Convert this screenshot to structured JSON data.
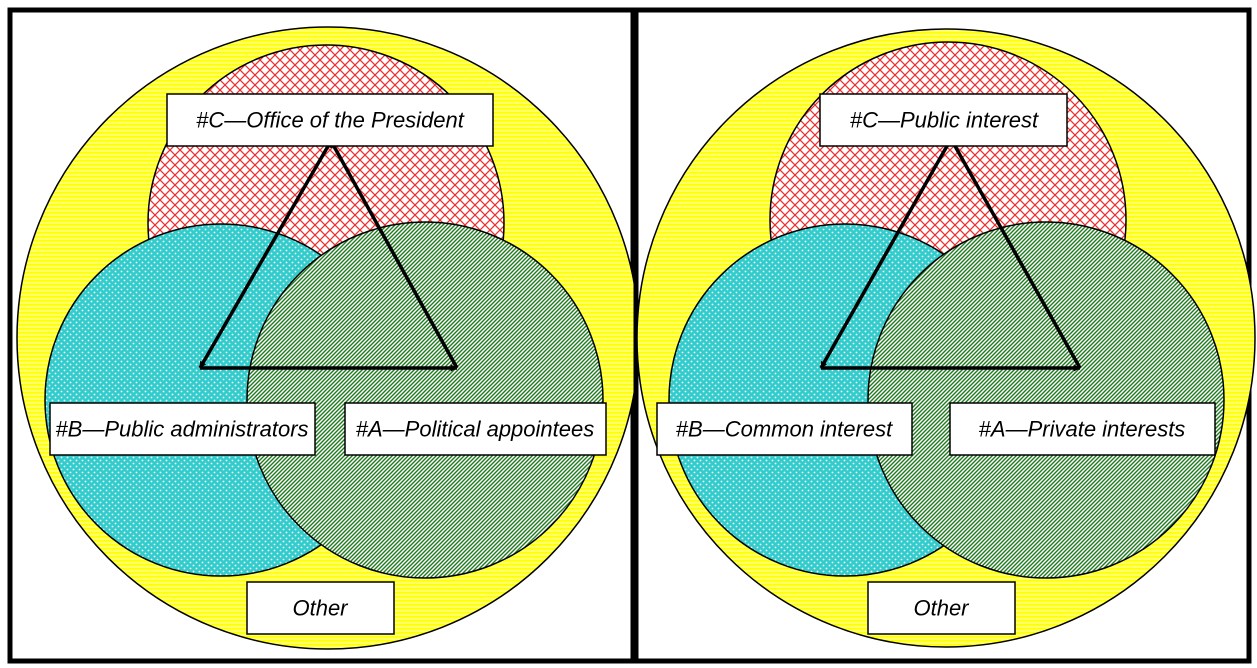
{
  "colors": {
    "outer_fill": "#ffff66",
    "outer_stripe": "#ffff00",
    "red_fill": "#ffffff",
    "red_pattern": "#e83232",
    "blue_fill": "#33cccc",
    "blue_dots": "#ffffff",
    "green_fill": "#ffffff",
    "green_stripe": "#1f7a1f",
    "frame": "#000000"
  },
  "panels": [
    {
      "labels": {
        "top": "#C—Office of the President",
        "left": "#B—Public administrators",
        "right": "#A—Political  appointees",
        "bottom": "Other"
      }
    },
    {
      "labels": {
        "top": "#C—Public interest",
        "left": "#B—Common interest",
        "right": "#A—Private interests",
        "bottom": "Other"
      }
    }
  ]
}
